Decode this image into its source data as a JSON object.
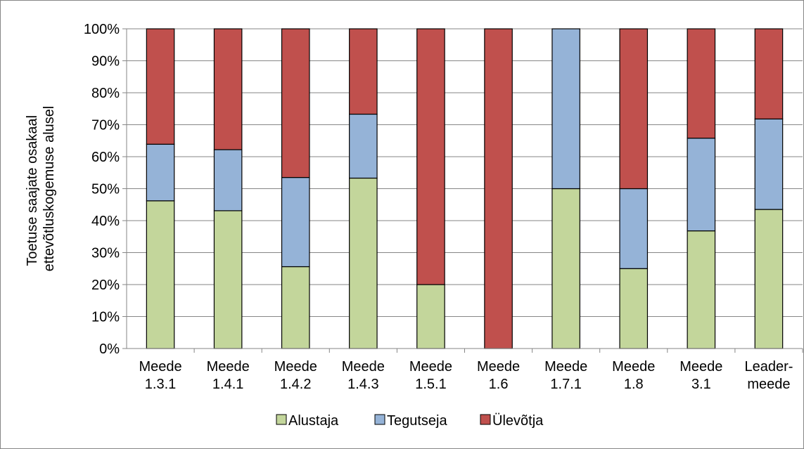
{
  "chart_data": {
    "type": "bar",
    "stacked": true,
    "percent": true,
    "categories": [
      [
        "Meede",
        "1.3.1"
      ],
      [
        "Meede",
        "1.4.1"
      ],
      [
        "Meede",
        "1.4.2"
      ],
      [
        "Meede",
        "1.4.3"
      ],
      [
        "Meede",
        "1.5.1"
      ],
      [
        "Meede",
        "1.6"
      ],
      [
        "Meede",
        "1.7.1"
      ],
      [
        "Meede",
        "1.8"
      ],
      [
        "Meede",
        "3.1"
      ],
      [
        "Leader-",
        "meede"
      ]
    ],
    "series": [
      {
        "name": "Alustaja",
        "color": "#c3d69b",
        "values": [
          46.2,
          43.1,
          25.6,
          53.3,
          20,
          0,
          50,
          25,
          36.8,
          43.5
        ]
      },
      {
        "name": "Tegutseja",
        "color": "#95b3d7",
        "values": [
          17.7,
          19.1,
          27.9,
          20,
          0,
          0,
          50,
          25,
          29,
          28.3
        ]
      },
      {
        "name": "Ülevõtja",
        "color": "#c0504d",
        "values": [
          36.1,
          37.8,
          46.5,
          26.7,
          80,
          100,
          0,
          50,
          34.2,
          28.2
        ]
      }
    ],
    "ylabel": [
      "Toetuse saajate osakaal",
      "ettevõtluskogemuse alusel"
    ],
    "yticks": [
      "0%",
      "10%",
      "20%",
      "30%",
      "40%",
      "50%",
      "60%",
      "70%",
      "80%",
      "90%",
      "100%"
    ],
    "ylim": [
      0,
      100
    ],
    "grid": true,
    "legend_position": "bottom"
  }
}
